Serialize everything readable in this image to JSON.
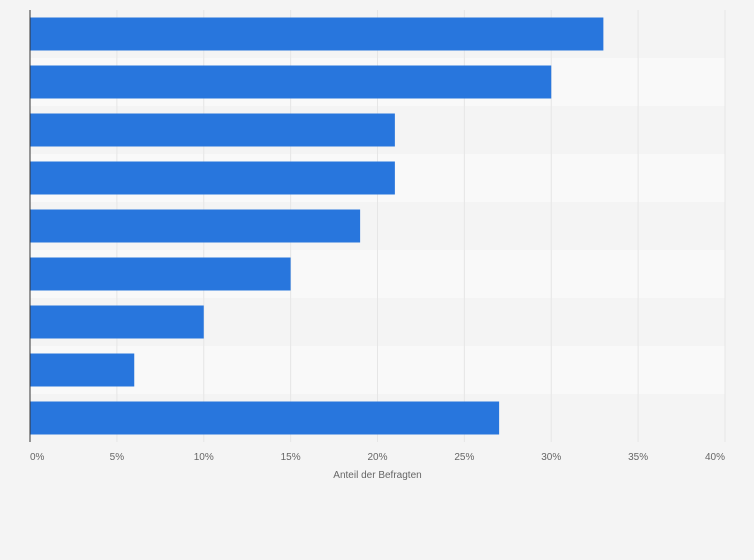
{
  "chart_data": {
    "type": "bar",
    "orientation": "horizontal",
    "categories": [
      "",
      "",
      "",
      "",
      "",
      "",
      "",
      "",
      ""
    ],
    "values": [
      33,
      30,
      21,
      21,
      19,
      15,
      10,
      6,
      27
    ],
    "unit": "%",
    "xlabel": "Anteil der Befragten",
    "ylabel": "",
    "xlim": [
      0,
      40
    ],
    "xticks": [
      0,
      5,
      10,
      15,
      20,
      25,
      30,
      35,
      40
    ],
    "xtick_labels": [
      "0%",
      "5%",
      "10%",
      "15%",
      "20%",
      "25%",
      "30%",
      "35%",
      "40%"
    ],
    "grid": true,
    "legend": "none",
    "bar_color": "#2876dd",
    "band_colors": [
      "#f4f4f4",
      "#f9f9f9"
    ],
    "grid_color": "#e6e6e6",
    "axis_color": "#333333",
    "text_color": "#666666"
  }
}
